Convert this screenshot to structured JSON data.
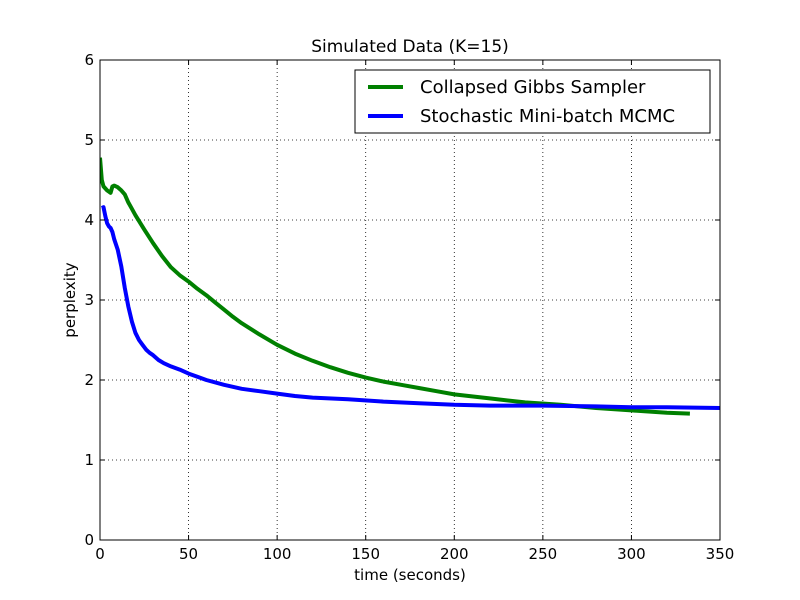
{
  "chart_data": {
    "type": "line",
    "title": "Simulated Data (K=15)",
    "xlabel": "time (seconds)",
    "ylabel": "perplexity",
    "xlim": [
      0,
      350
    ],
    "ylim": [
      0,
      6
    ],
    "xticks": [
      "0",
      "50",
      "100",
      "150",
      "200",
      "250",
      "300",
      "350"
    ],
    "yticks": [
      "0",
      "1",
      "2",
      "3",
      "4",
      "5",
      "6"
    ],
    "grid": true,
    "legend_position": "top-right",
    "series": [
      {
        "name": "Collapsed Gibbs Sampler",
        "color": "#008000",
        "x": [
          0,
          1,
          2,
          4,
          6,
          7,
          8,
          10,
          12,
          14,
          16,
          18,
          20,
          25,
          30,
          35,
          40,
          45,
          50,
          55,
          60,
          65,
          70,
          75,
          80,
          90,
          100,
          110,
          120,
          130,
          140,
          150,
          160,
          170,
          180,
          190,
          200,
          220,
          240,
          260,
          280,
          300,
          320,
          333
        ],
        "y": [
          4.78,
          4.5,
          4.42,
          4.37,
          4.34,
          4.42,
          4.43,
          4.41,
          4.37,
          4.32,
          4.22,
          4.14,
          4.06,
          3.88,
          3.71,
          3.55,
          3.41,
          3.31,
          3.23,
          3.14,
          3.06,
          2.97,
          2.88,
          2.79,
          2.71,
          2.57,
          2.44,
          2.33,
          2.24,
          2.16,
          2.09,
          2.03,
          1.98,
          1.94,
          1.9,
          1.86,
          1.82,
          1.77,
          1.72,
          1.69,
          1.65,
          1.62,
          1.59,
          1.58
        ]
      },
      {
        "name": "Stochastic Mini-batch MCMC",
        "color": "#0000ff",
        "x": [
          1,
          2,
          3,
          4,
          5,
          6,
          7,
          8,
          10,
          12,
          14,
          16,
          18,
          20,
          22,
          24,
          26,
          28,
          30,
          33,
          36,
          40,
          45,
          50,
          55,
          60,
          70,
          80,
          90,
          100,
          110,
          120,
          140,
          160,
          180,
          190,
          200,
          220,
          250,
          280,
          300,
          320,
          350
        ],
        "y": [
          4.15,
          4.16,
          4.05,
          3.96,
          3.92,
          3.9,
          3.85,
          3.76,
          3.63,
          3.42,
          3.15,
          2.92,
          2.73,
          2.59,
          2.5,
          2.44,
          2.38,
          2.34,
          2.31,
          2.25,
          2.21,
          2.17,
          2.13,
          2.08,
          2.04,
          2.0,
          1.94,
          1.89,
          1.86,
          1.83,
          1.8,
          1.78,
          1.76,
          1.73,
          1.71,
          1.7,
          1.69,
          1.68,
          1.68,
          1.67,
          1.66,
          1.66,
          1.65
        ]
      }
    ]
  }
}
